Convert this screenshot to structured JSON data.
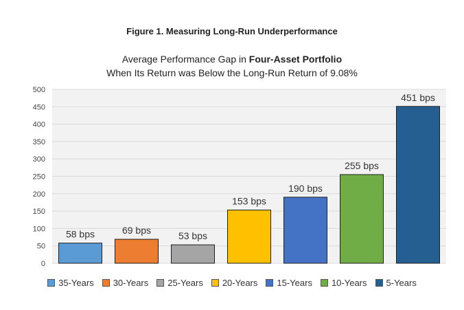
{
  "figure_title": "Figure 1.  Measuring Long-Run Underperformance",
  "subtitle_line1_prefix": "Average Performance Gap in ",
  "subtitle_line1_bold": "Four-Asset Portfolio",
  "subtitle_line2": "When Its Return was Below the Long-Run Return of 9.08%",
  "chart_data": {
    "type": "bar",
    "categories": [
      "35-Years",
      "30-Years",
      "25-Years",
      "20-Years",
      "15-Years",
      "10-Years",
      "5-Years"
    ],
    "values": [
      58,
      69,
      53,
      153,
      190,
      255,
      451
    ],
    "data_labels": [
      "58 bps",
      "69 bps",
      "53 bps",
      "153 bps",
      "190 bps",
      "255 bps",
      "451 bps"
    ],
    "colors": [
      "#5b9bd5",
      "#ed7d31",
      "#a5a5a5",
      "#ffc000",
      "#4472c4",
      "#70ad47",
      "#255e91"
    ],
    "ylim": [
      0,
      500
    ],
    "yticks": [
      0,
      50,
      100,
      150,
      200,
      250,
      300,
      350,
      400,
      450,
      500
    ],
    "grid": true,
    "legend_position": "bottom",
    "plot_background": "#f2f2f2"
  }
}
